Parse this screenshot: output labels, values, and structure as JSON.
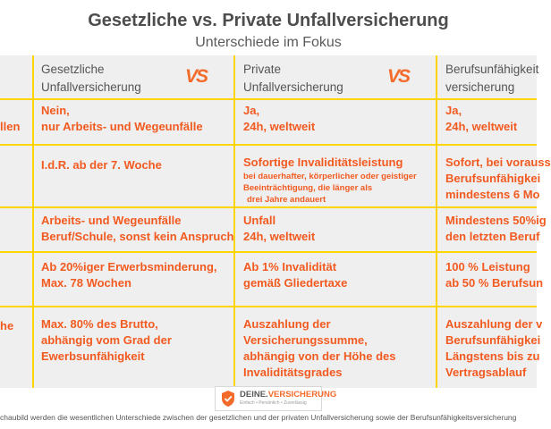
{
  "header": {
    "title": "Gesetzliche vs. Private Unfallversicherung",
    "subtitle": "Unterschiede im Fokus"
  },
  "columns": [
    {
      "line1": "Gesetzliche",
      "line2": "Unfallversicherung"
    },
    {
      "line1": "Private",
      "line2": "Unfallversicherung"
    },
    {
      "line1": "Berufsunfähigkeit",
      "line2": "versicherung"
    }
  ],
  "vs_label": "VS",
  "row_labels": [
    "llen",
    "he"
  ],
  "rows": [
    {
      "cells": [
        [
          "Nein,",
          "nur Arbeits- und Wegeunfälle"
        ],
        [
          "Ja,",
          "24h, weltweit"
        ],
        [
          "Ja,",
          "24h, weltweit"
        ]
      ]
    },
    {
      "cells": [
        [
          "I.d.R. ab der 7. Woche"
        ],
        [
          "Sofortige Invaliditätsleistung"
        ],
        [
          "Sofort, bei vorauss",
          "Berufsunfähigkei",
          "mindestens 6 Mo"
        ]
      ],
      "note": [
        "bei dauerhafter, körperlicher oder geistiger",
        "Beeinträchtigung, die länger als",
        "drei Jahre andauert"
      ]
    },
    {
      "cells": [
        [
          "Arbeits- und Wegeunfälle",
          "Beruf/Schule, sonst kein Anspruch"
        ],
        [
          "Unfall",
          "24h, weltweit"
        ],
        [
          "Mindestens 50%ig",
          "den letzten Beruf"
        ]
      ]
    },
    {
      "cells": [
        [
          "Ab 20%iger Erwerbsminderung,",
          "Max. 78 Wochen"
        ],
        [
          "Ab 1% Invalidität",
          "gemäß Gliedertaxe"
        ],
        [
          "100 % Leistung",
          "ab 50 % Berufsun"
        ]
      ]
    },
    {
      "cells": [
        [
          "Max. 80% des Brutto,",
          "abhängig vom Grad der",
          "Ewerbsunfähigkeit"
        ],
        [
          "Auszahlung der",
          "Versicherungssumme,",
          "abhängig von der Höhe des",
          "Invaliditätsgrades"
        ],
        [
          "Auszahlung der v",
          "Berufsunfähigkei",
          "Längstens bis zu",
          "Vertragsablauf"
        ]
      ]
    }
  ],
  "logo": {
    "brand_prefix": "DEINE",
    "brand_suffix": "VERSICHERUNG",
    "tagline": "Einfach • Persönlich • Zuverlässig"
  },
  "footnote": "chaubild werden die wesentlichen Unterschiede zwischen der gesetzlichen und der privaten Unfallversicherung sowie der Berufsunfähigkeitsversicherung",
  "colors": {
    "accent": "#f25a20",
    "divider": "#ffd500",
    "background": "#efefef"
  }
}
